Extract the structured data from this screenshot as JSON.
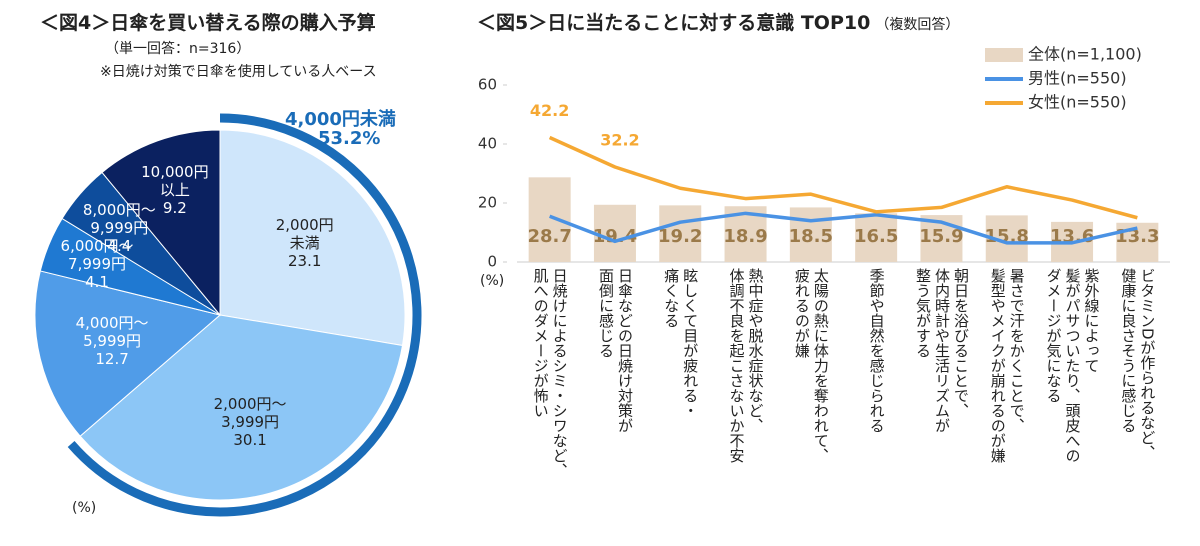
{
  "chart_data": [
    {
      "type": "pie",
      "title": "＜図4＞日傘を買い替える際の購入予算",
      "subtitle": "（単一回答：n=316）",
      "note": "※日焼け対策で日傘を使用している人ベース",
      "unit_label": "(%)",
      "categories": [
        "2,000円\n未満",
        "2,000円～\n3,999円",
        "4,000円～\n5,999円",
        "6,000円～\n7,999円",
        "8,000円～\n9,999円",
        "10,000円\n以上"
      ],
      "values": [
        23.1,
        30.1,
        12.7,
        4.1,
        4.4,
        9.2
      ],
      "colors": [
        "#cfe6fb",
        "#8cc6f6",
        "#509ce8",
        "#1f79d2",
        "#0e4d9c",
        "#0b2160"
      ],
      "label_colors": [
        "#222222",
        "#222222",
        "#ffffff",
        "#ffffff",
        "#ffffff",
        "#ffffff"
      ],
      "annotation": {
        "label": "4,000円未満",
        "value": 53.2,
        "value_label": "53.2%",
        "color": "#1a6cb8"
      }
    },
    {
      "type": "combo",
      "title": "＜図5＞日に当たることに対する意識 TOP10",
      "subtitle": "（複数回答）",
      "unit_label": "(%)",
      "categories": [
        "日焼けによるシミ・シワなど、\n肌へのダメージが怖い",
        "日傘などの日焼け対策が\n面倒に感じる",
        "眩しくて目が疲れる・\n痛くなる",
        "熱中症や脱水症状など、\n体調不良を起こさないか不安",
        "太陽の熱に体力を奪われて、\n疲れるのが嫌",
        "季節や自然を感じられる",
        "朝日を浴びることで、\n体内時計や生活リズムが\n整う気がする",
        "暑さで汗をかくことで、\n髪型やメイクが崩れるのが嫌",
        "紫外線によって\n髪がパサついたり、頭皮への\nダメージが気になる",
        "ビタミンDが作られるなど、\n健康に良さそうに感じる"
      ],
      "ylim": [
        0,
        60
      ],
      "yticks": [
        0,
        20,
        40,
        60
      ],
      "series": [
        {
          "name": "全体(n=1,100)",
          "type": "bar",
          "color": "#e8d7c4",
          "label_color": "#9b7a4a",
          "values": [
            28.7,
            19.4,
            19.2,
            18.9,
            18.5,
            16.5,
            15.9,
            15.8,
            13.6,
            13.3
          ]
        },
        {
          "name": "男性(n=550)",
          "type": "line",
          "color": "#4a92e4",
          "values": [
            15.5,
            7,
            13.5,
            16.5,
            14,
            16,
            13.5,
            6.5,
            6.5,
            11.5
          ]
        },
        {
          "name": "女性(n=550)",
          "type": "line",
          "color": "#f5a833",
          "values": [
            42.2,
            32.2,
            25,
            21.5,
            23,
            17,
            18.5,
            25.5,
            21,
            15
          ],
          "value_labels": [
            "42.2",
            "32.2",
            null,
            null,
            null,
            null,
            null,
            null,
            null,
            null
          ]
        }
      ]
    }
  ]
}
